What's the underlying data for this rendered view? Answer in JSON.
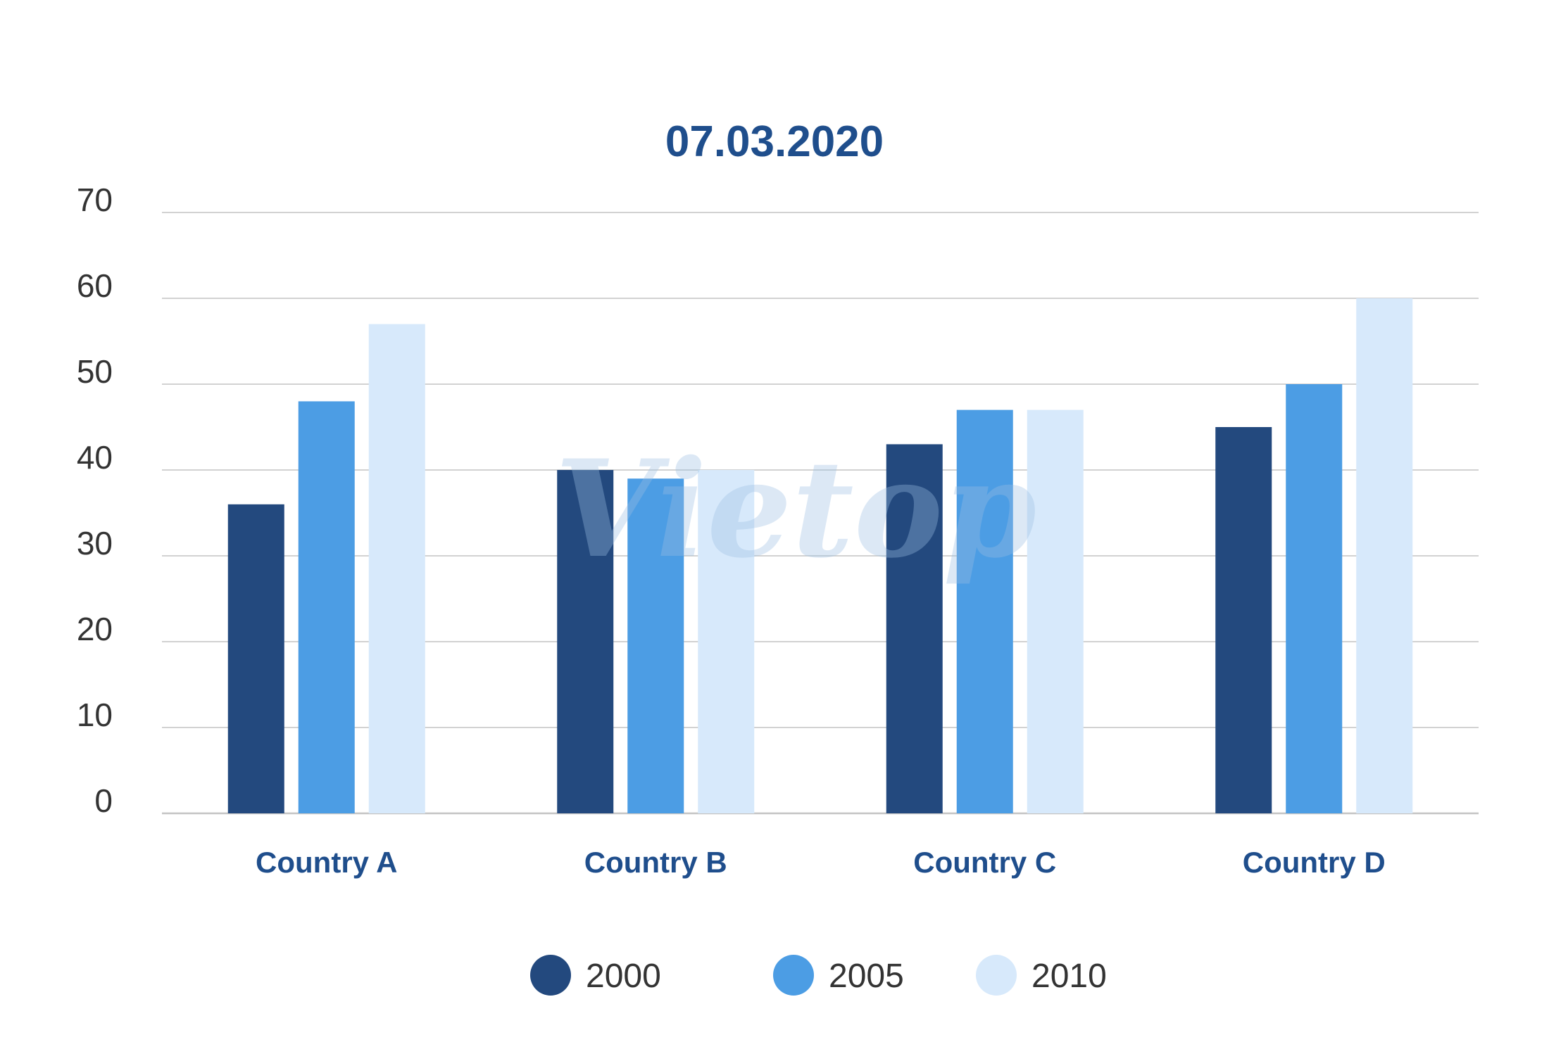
{
  "chart_data": {
    "type": "bar",
    "title": "07.03.2020",
    "xlabel": "",
    "ylabel": "",
    "categories": [
      "Country A",
      "Country B",
      "Country C",
      "Country D"
    ],
    "series": [
      {
        "name": "2000",
        "color": "#23497e",
        "values": [
          36,
          40,
          43,
          45
        ]
      },
      {
        "name": "2005",
        "color": "#4c9de4",
        "values": [
          48,
          39,
          47,
          50
        ]
      },
      {
        "name": "2010",
        "color": "#d7e9fb",
        "values": [
          57,
          40,
          47,
          60
        ]
      }
    ],
    "ylim": [
      0,
      70
    ],
    "yticks": [
      0,
      10,
      20,
      30,
      40,
      50,
      60,
      70
    ],
    "grid": true,
    "legend_position": "bottom",
    "gridline_color": "#c4c4c4"
  },
  "watermark": {
    "text": "Vietop"
  }
}
